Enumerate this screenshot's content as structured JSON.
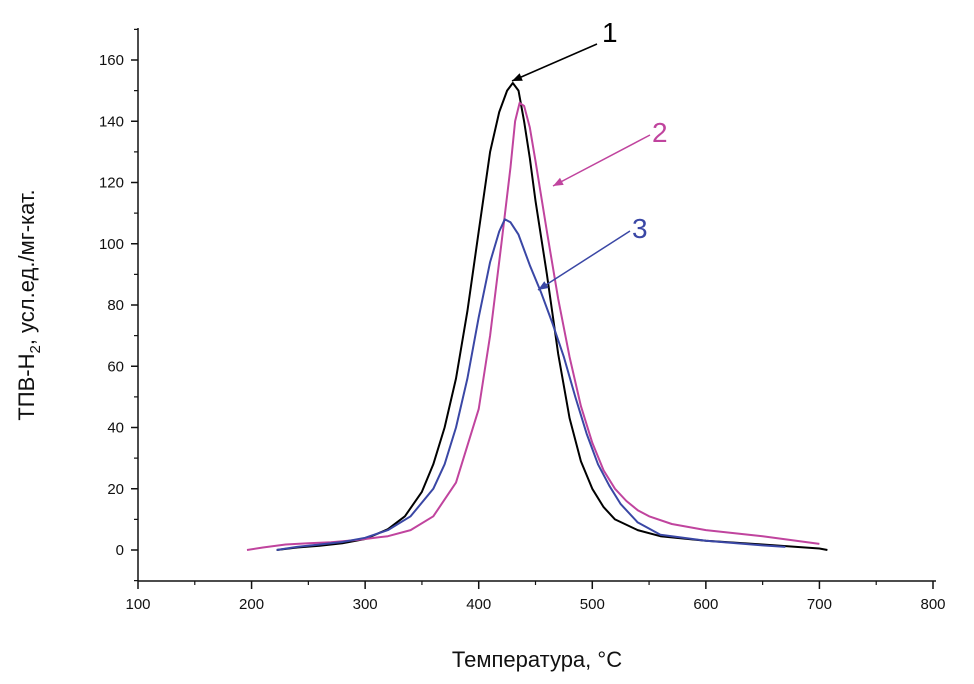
{
  "chart_data": {
    "type": "line",
    "title": "",
    "xlabel": "Температура, °С",
    "ylabel_main": "ТПВ-H",
    "ylabel_sub": "2",
    "ylabel_rest": ", усл.ед./мг-кат.",
    "xlim": [
      100,
      800
    ],
    "ylim": [
      -10,
      170
    ],
    "x_ticks": [
      "100",
      "200",
      "300",
      "400",
      "500",
      "600",
      "700",
      "800"
    ],
    "y_ticks": [
      "0",
      "20",
      "40",
      "60",
      "80",
      "100",
      "120",
      "140",
      "160"
    ],
    "grid": false,
    "series": [
      {
        "name": "1",
        "color": "#000000",
        "points": [
          [
            222,
            0
          ],
          [
            240,
            0.8
          ],
          [
            260,
            1.4
          ],
          [
            280,
            2.2
          ],
          [
            300,
            3.6
          ],
          [
            320,
            6.8
          ],
          [
            335,
            11
          ],
          [
            350,
            19
          ],
          [
            360,
            28
          ],
          [
            370,
            40
          ],
          [
            380,
            56
          ],
          [
            390,
            78
          ],
          [
            400,
            104
          ],
          [
            410,
            130
          ],
          [
            418,
            143
          ],
          [
            425,
            150
          ],
          [
            430,
            152.5
          ],
          [
            435,
            150
          ],
          [
            440,
            140
          ],
          [
            445,
            128
          ],
          [
            450,
            114
          ],
          [
            460,
            90
          ],
          [
            470,
            64
          ],
          [
            480,
            43
          ],
          [
            490,
            29
          ],
          [
            500,
            20
          ],
          [
            510,
            14
          ],
          [
            520,
            10
          ],
          [
            540,
            6.5
          ],
          [
            560,
            4.5
          ],
          [
            600,
            3
          ],
          [
            650,
            1.8
          ],
          [
            700,
            0.5
          ],
          [
            707,
            0
          ]
        ]
      },
      {
        "name": "2",
        "color": "#c0449e",
        "points": [
          [
            196,
            0
          ],
          [
            210,
            0.8
          ],
          [
            230,
            1.8
          ],
          [
            250,
            2.2
          ],
          [
            270,
            2.5
          ],
          [
            290,
            3.2
          ],
          [
            300,
            3.6
          ],
          [
            320,
            4.5
          ],
          [
            340,
            6.5
          ],
          [
            360,
            11
          ],
          [
            380,
            22
          ],
          [
            400,
            46
          ],
          [
            410,
            70
          ],
          [
            420,
            100
          ],
          [
            428,
            125
          ],
          [
            432,
            140
          ],
          [
            436,
            146
          ],
          [
            440,
            145
          ],
          [
            445,
            138
          ],
          [
            450,
            127
          ],
          [
            460,
            104
          ],
          [
            470,
            82
          ],
          [
            480,
            63
          ],
          [
            490,
            47
          ],
          [
            500,
            35
          ],
          [
            510,
            26
          ],
          [
            520,
            20
          ],
          [
            530,
            16
          ],
          [
            540,
            13
          ],
          [
            550,
            11
          ],
          [
            570,
            8.5
          ],
          [
            600,
            6.5
          ],
          [
            650,
            4.5
          ],
          [
            700,
            2
          ]
        ]
      },
      {
        "name": "3",
        "color": "#3a47a5",
        "points": [
          [
            222,
            0
          ],
          [
            240,
            1
          ],
          [
            260,
            1.8
          ],
          [
            280,
            2.6
          ],
          [
            300,
            4
          ],
          [
            320,
            6.5
          ],
          [
            340,
            11
          ],
          [
            360,
            20
          ],
          [
            370,
            28
          ],
          [
            380,
            40
          ],
          [
            390,
            56
          ],
          [
            400,
            76
          ],
          [
            410,
            94
          ],
          [
            418,
            104
          ],
          [
            423,
            108
          ],
          [
            428,
            107
          ],
          [
            435,
            103
          ],
          [
            445,
            93
          ],
          [
            455,
            84
          ],
          [
            465,
            74
          ],
          [
            475,
            63
          ],
          [
            485,
            50
          ],
          [
            495,
            38
          ],
          [
            505,
            28
          ],
          [
            515,
            21
          ],
          [
            525,
            15
          ],
          [
            540,
            9
          ],
          [
            560,
            5
          ],
          [
            600,
            3
          ],
          [
            650,
            1.5
          ],
          [
            670,
            1
          ]
        ]
      }
    ],
    "callouts": [
      {
        "label": "1",
        "color": "#000000",
        "text_x": 602,
        "text_y": 42,
        "line": [
          [
            597,
            44
          ],
          [
            512,
            81
          ]
        ]
      },
      {
        "label": "2",
        "color": "#c0449e",
        "text_x": 652,
        "text_y": 142,
        "line": [
          [
            650,
            135
          ],
          [
            553,
            186
          ]
        ]
      },
      {
        "label": "3",
        "color": "#3a47a5",
        "text_x": 632,
        "text_y": 238,
        "line": [
          [
            630,
            231
          ],
          [
            538,
            290
          ]
        ]
      }
    ]
  }
}
